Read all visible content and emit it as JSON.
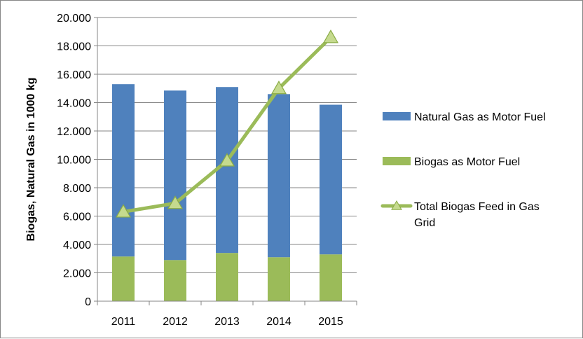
{
  "chart_data": {
    "type": "bar",
    "stacked": true,
    "categories": [
      "2011",
      "2012",
      "2013",
      "2014",
      "2015"
    ],
    "series": [
      {
        "name": "Biogas as Motor Fuel",
        "kind": "bar",
        "color": "#9BBB59",
        "values": [
          3150,
          2900,
          3400,
          3100,
          3300
        ]
      },
      {
        "name": "Natural Gas as Motor Fuel",
        "kind": "bar",
        "color": "#4F81BD",
        "values": [
          12150,
          11950,
          11700,
          11500,
          10550
        ]
      },
      {
        "name": "Total Biogas Feed in Gas Grid",
        "kind": "line",
        "marker": "triangle",
        "color": "#9BBB59",
        "values": [
          6300,
          6900,
          9900,
          15000,
          18600
        ]
      }
    ],
    "yticks": [
      "0",
      "2.000",
      "4.000",
      "6.000",
      "8.000",
      "10.000",
      "12.000",
      "14.000",
      "16.000",
      "18.000",
      "20.000"
    ],
    "ylim": [
      0,
      20000
    ],
    "xlabel": "",
    "ylabel": "Biogas, Natural Gas in 1000 kg",
    "grid": true,
    "legend": {
      "position": "right",
      "items": [
        {
          "label_lines": [
            "Natural Gas as Motor Fuel"
          ],
          "swatch": "bar",
          "color": "#4F81BD"
        },
        {
          "label_lines": [
            "Biogas as Motor Fuel"
          ],
          "swatch": "bar",
          "color": "#9BBB59"
        },
        {
          "label_lines": [
            "Total Biogas Feed in Gas",
            "Grid"
          ],
          "swatch": "line",
          "color": "#9BBB59"
        }
      ]
    }
  }
}
